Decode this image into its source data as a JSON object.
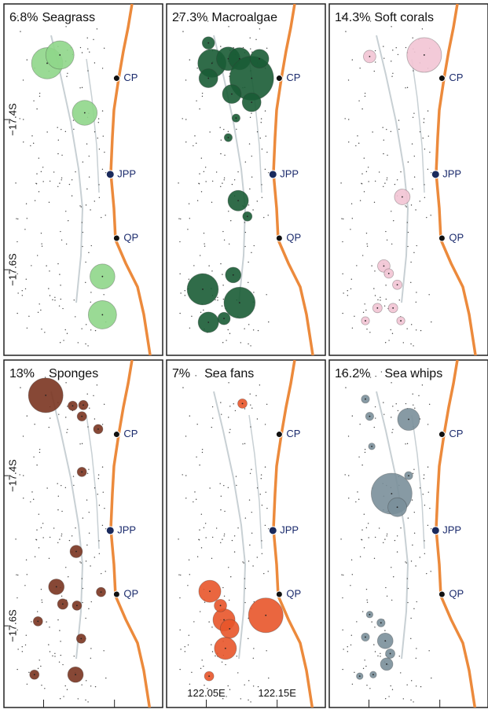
{
  "lonlim": [
    121.994,
    122.218
  ],
  "latlim": [
    -17.714,
    -17.246
  ],
  "lonticks": [
    {
      "value": 122.05,
      "label": "122.05E"
    },
    {
      "value": 122.15,
      "label": "122.15E"
    }
  ],
  "latticks": [
    {
      "value": -17.4,
      "label": "−17.4S"
    },
    {
      "value": -17.6,
      "label": "−17.6S"
    }
  ],
  "sites": [
    {
      "label": "CP",
      "lon": 122.153,
      "lat": -17.345
    },
    {
      "label": "JPP",
      "lon": 122.144,
      "lat": -17.473
    },
    {
      "label": "QP",
      "lon": 122.153,
      "lat": -17.558
    }
  ],
  "panels": [
    {
      "percent": "6.8%",
      "name": "Seagrass",
      "color": "#8fd68a",
      "bubbles": [
        [
          122.055,
          -17.325,
          44
        ],
        [
          122.073,
          -17.314,
          36
        ],
        [
          122.108,
          -17.391,
          28
        ],
        [
          122.133,
          -17.609,
          28
        ],
        [
          122.133,
          -17.66,
          36
        ]
      ]
    },
    {
      "percent": "27.3%",
      "name": "Macroalgae",
      "color": "#1a5c35",
      "bubbles": [
        [
          122.053,
          -17.298,
          7
        ],
        [
          122.058,
          -17.325,
          36
        ],
        [
          122.081,
          -17.319,
          25
        ],
        [
          122.097,
          -17.319,
          22
        ],
        [
          122.114,
          -17.345,
          87
        ],
        [
          122.125,
          -17.319,
          16
        ],
        [
          122.053,
          -17.345,
          16
        ],
        [
          122.086,
          -17.366,
          16
        ],
        [
          122.114,
          -17.377,
          16
        ],
        [
          122.092,
          -17.398,
          3
        ],
        [
          122.081,
          -17.424,
          3
        ],
        [
          122.095,
          -17.508,
          19
        ],
        [
          122.108,
          -17.529,
          4
        ],
        [
          122.045,
          -17.626,
          44
        ],
        [
          122.088,
          -17.607,
          11
        ],
        [
          122.097,
          -17.644,
          44
        ],
        [
          122.075,
          -17.665,
          7
        ],
        [
          122.053,
          -17.67,
          19
        ]
      ]
    },
    {
      "percent": "14.3%",
      "name": "Soft corals",
      "color": "#f2c4d4",
      "bubbles": [
        [
          122.128,
          -17.314,
          54
        ],
        [
          122.051,
          -17.316,
          7
        ],
        [
          122.097,
          -17.503,
          11
        ],
        [
          122.071,
          -17.595,
          7
        ],
        [
          122.078,
          -17.605,
          4
        ],
        [
          122.09,
          -17.62,
          4
        ],
        [
          122.084,
          -17.651,
          4
        ],
        [
          122.062,
          -17.651,
          4
        ],
        [
          122.045,
          -17.668,
          3
        ],
        [
          122.095,
          -17.668,
          3
        ]
      ]
    },
    {
      "percent": "13%",
      "name": "Sponges",
      "color": "#7a3420",
      "bubbles": [
        [
          122.053,
          -17.293,
          54
        ],
        [
          122.091,
          -17.307,
          4
        ],
        [
          122.106,
          -17.306,
          4
        ],
        [
          122.104,
          -17.321,
          4
        ],
        [
          122.127,
          -17.338,
          4
        ],
        [
          122.104,
          -17.395,
          4
        ],
        [
          122.096,
          -17.501,
          7
        ],
        [
          122.068,
          -17.548,
          11
        ],
        [
          122.077,
          -17.571,
          5
        ],
        [
          122.097,
          -17.573,
          4
        ],
        [
          122.131,
          -17.555,
          4
        ],
        [
          122.042,
          -17.594,
          4
        ],
        [
          122.103,
          -17.617,
          4
        ],
        [
          122.095,
          -17.665,
          11
        ],
        [
          122.037,
          -17.665,
          4
        ]
      ]
    },
    {
      "percent": "7%",
      "name": "Sea fans",
      "color": "#e8552a",
      "bubbles": [
        [
          122.101,
          -17.304,
          4
        ],
        [
          122.055,
          -17.554,
          22
        ],
        [
          122.075,
          -17.592,
          22
        ],
        [
          122.083,
          -17.604,
          16
        ],
        [
          122.07,
          -17.573,
          7
        ],
        [
          122.077,
          -17.63,
          22
        ],
        [
          122.134,
          -17.586,
          54
        ],
        [
          122.054,
          -17.667,
          4
        ]
      ]
    },
    {
      "percent": "16.2%",
      "name": "Sea whips",
      "color": "#7a8f9a",
      "bubbles": [
        [
          122.106,
          -17.325,
          22
        ],
        [
          122.082,
          -17.424,
          75
        ],
        [
          122.09,
          -17.442,
          16
        ],
        [
          122.045,
          -17.298,
          3
        ],
        [
          122.051,
          -17.321,
          3
        ],
        [
          122.054,
          -17.361,
          2
        ],
        [
          122.106,
          -17.4,
          3
        ],
        [
          122.051,
          -17.585,
          2
        ],
        [
          122.067,
          -17.596,
          3
        ],
        [
          122.073,
          -17.62,
          11
        ],
        [
          122.08,
          -17.637,
          4
        ],
        [
          122.075,
          -17.651,
          7
        ],
        [
          122.045,
          -17.615,
          3
        ],
        [
          122.056,
          -17.665,
          2
        ],
        [
          122.037,
          -17.667,
          2
        ]
      ]
    }
  ]
}
